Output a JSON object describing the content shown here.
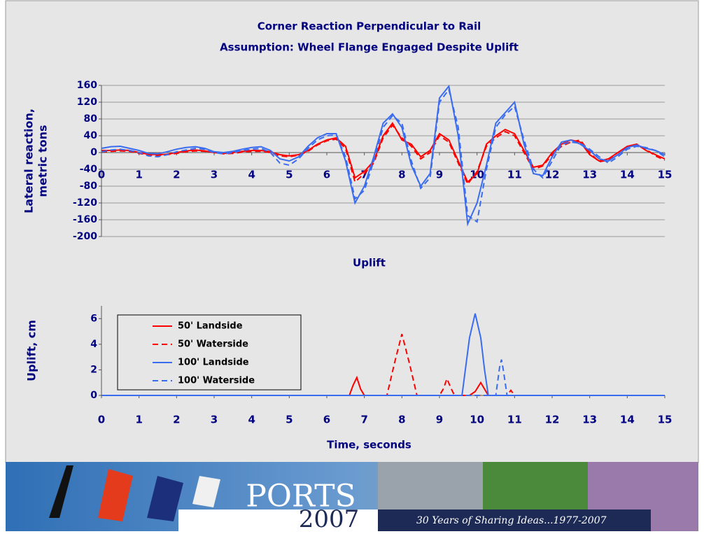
{
  "chart_data": [
    {
      "type": "line",
      "title": "Corner Reaction Perpendicular to Rail",
      "subtitle": "Assumption: Wheel Flange Engaged Despite Uplift",
      "xlabel": "Uplift",
      "ylabel": [
        "Lateral reaction,",
        "metric tons"
      ],
      "x": [
        0,
        0.25,
        0.5,
        0.75,
        1,
        1.25,
        1.5,
        1.75,
        2,
        2.25,
        2.5,
        2.75,
        3,
        3.25,
        3.5,
        3.75,
        4,
        4.25,
        4.5,
        4.75,
        5,
        5.25,
        5.5,
        5.75,
        6,
        6.25,
        6.5,
        6.75,
        7,
        7.25,
        7.5,
        7.75,
        8,
        8.25,
        8.5,
        8.75,
        9,
        9.25,
        9.5,
        9.75,
        10,
        10.25,
        10.5,
        10.75,
        11,
        11.25,
        11.5,
        11.75,
        12,
        12.25,
        12.5,
        12.75,
        13,
        13.25,
        13.5,
        13.75,
        14,
        14.25,
        14.5,
        14.75,
        15
      ],
      "series": [
        {
          "color": "#ff0000",
          "dash": false,
          "values": [
            5,
            5,
            6,
            5,
            0,
            -4,
            -5,
            -4,
            0,
            4,
            6,
            4,
            0,
            -2,
            0,
            3,
            5,
            5,
            2,
            -5,
            -8,
            -5,
            5,
            20,
            30,
            35,
            15,
            -60,
            -45,
            -20,
            40,
            70,
            30,
            20,
            -10,
            5,
            45,
            30,
            -20,
            -70,
            -50,
            20,
            40,
            55,
            45,
            5,
            -35,
            -30,
            0,
            20,
            30,
            25,
            -5,
            -20,
            -15,
            0,
            15,
            20,
            5,
            -5,
            -15
          ]
        },
        {
          "color": "#ff0000",
          "dash": true,
          "values": [
            2,
            3,
            4,
            3,
            -2,
            -6,
            -7,
            -5,
            -2,
            2,
            4,
            3,
            0,
            -3,
            -2,
            1,
            3,
            3,
            0,
            -8,
            -10,
            -6,
            3,
            18,
            28,
            32,
            10,
            -70,
            -50,
            -25,
            35,
            65,
            35,
            15,
            -15,
            0,
            40,
            25,
            -25,
            -75,
            -45,
            15,
            35,
            50,
            40,
            0,
            -40,
            -32,
            -5,
            15,
            25,
            30,
            0,
            -22,
            -18,
            -5,
            12,
            18,
            8,
            -8,
            -18
          ]
        },
        {
          "color": "#3a6cf0",
          "dash": false,
          "values": [
            10,
            14,
            15,
            10,
            5,
            -2,
            -3,
            2,
            8,
            12,
            14,
            10,
            2,
            0,
            3,
            8,
            12,
            14,
            5,
            -15,
            -20,
            -10,
            15,
            35,
            45,
            45,
            -20,
            -120,
            -80,
            -10,
            70,
            92,
            60,
            -30,
            -80,
            -50,
            130,
            158,
            40,
            -170,
            -120,
            -30,
            70,
            95,
            120,
            20,
            -50,
            -55,
            -10,
            25,
            30,
            20,
            5,
            -15,
            -20,
            -5,
            12,
            18,
            10,
            5,
            -5
          ]
        },
        {
          "color": "#3a6cf0",
          "dash": true,
          "values": [
            2,
            6,
            8,
            5,
            0,
            -8,
            -10,
            -5,
            2,
            6,
            10,
            8,
            0,
            -3,
            0,
            5,
            8,
            10,
            0,
            -25,
            -30,
            -15,
            10,
            30,
            40,
            42,
            -10,
            -110,
            -90,
            -20,
            60,
            88,
            70,
            -20,
            -85,
            -60,
            120,
            150,
            60,
            -150,
            -165,
            -40,
            60,
            90,
            110,
            30,
            -40,
            -60,
            -20,
            20,
            25,
            22,
            8,
            -10,
            -25,
            -10,
            8,
            15,
            12,
            5,
            -10
          ]
        }
      ],
      "xlim": [
        0,
        15
      ],
      "xticks": [
        0,
        1,
        2,
        3,
        4,
        5,
        6,
        7,
        8,
        9,
        10,
        11,
        12,
        13,
        14,
        15
      ],
      "ylim": [
        -200,
        160
      ],
      "yticks": [
        -200,
        -160,
        -120,
        -80,
        -40,
        0,
        40,
        80,
        120,
        160
      ],
      "grid": true
    },
    {
      "type": "line",
      "xlabel": "Time, seconds",
      "ylabel": [
        "Uplift, cm"
      ],
      "x": [
        0,
        6.6,
        6.7,
        6.8,
        6.9,
        7.0,
        7.6,
        7.8,
        8.0,
        8.2,
        8.4,
        9.0,
        9.1,
        9.2,
        9.3,
        9.4,
        9.6,
        9.8,
        9.95,
        10.1,
        10.2,
        10.3,
        10.5,
        10.6,
        10.65,
        10.7,
        10.8,
        10.9,
        11.0,
        15
      ],
      "series": [
        {
          "name": "50' Landside",
          "color": "#ff0000",
          "dash": false,
          "values": [
            0,
            0,
            0.8,
            1.4,
            0.5,
            0,
            0,
            0,
            0,
            0,
            0,
            0,
            0,
            0,
            0,
            0,
            0,
            0,
            0.3,
            1.0,
            0.5,
            0,
            0,
            0,
            0,
            0,
            0,
            0,
            0,
            0
          ]
        },
        {
          "name": "50' Waterside",
          "color": "#ff0000",
          "dash": true,
          "values": [
            0,
            0,
            0,
            0,
            0,
            0,
            0,
            2.5,
            4.8,
            2.5,
            0,
            0,
            0.5,
            1.3,
            0.6,
            0,
            0,
            0,
            0,
            0,
            0,
            0,
            0,
            0,
            0,
            0,
            0,
            0.4,
            0,
            0
          ]
        },
        {
          "name": "100' Landside",
          "color": "#3a6cf0",
          "dash": false,
          "values": [
            0,
            0,
            0,
            0,
            0,
            0,
            0,
            0,
            0,
            0,
            0,
            0,
            0,
            0,
            0,
            0,
            0,
            4.5,
            6.4,
            4.5,
            2,
            0,
            0,
            0,
            0,
            0,
            0,
            0,
            0,
            0
          ]
        },
        {
          "name": "100' Waterside",
          "color": "#3a6cf0",
          "dash": true,
          "values": [
            0,
            0,
            0,
            0,
            0,
            0,
            0,
            0,
            0,
            0,
            0,
            0,
            0,
            0,
            0,
            0,
            0,
            0,
            0,
            0,
            0,
            0,
            0,
            2.2,
            2.8,
            2,
            0,
            0,
            0,
            0
          ]
        }
      ],
      "xlim": [
        0,
        15
      ],
      "xticks": [
        0,
        1,
        2,
        3,
        4,
        5,
        6,
        7,
        8,
        9,
        10,
        11,
        12,
        13,
        14,
        15
      ],
      "ylim": [
        0,
        7
      ],
      "yticks": [
        0,
        2,
        4,
        6
      ],
      "grid": false,
      "legend": "upper left"
    }
  ],
  "banner": {
    "logo": "PORTS",
    "year": "2007",
    "tagline": "30 Years of Sharing Ideas...1977-2007"
  }
}
